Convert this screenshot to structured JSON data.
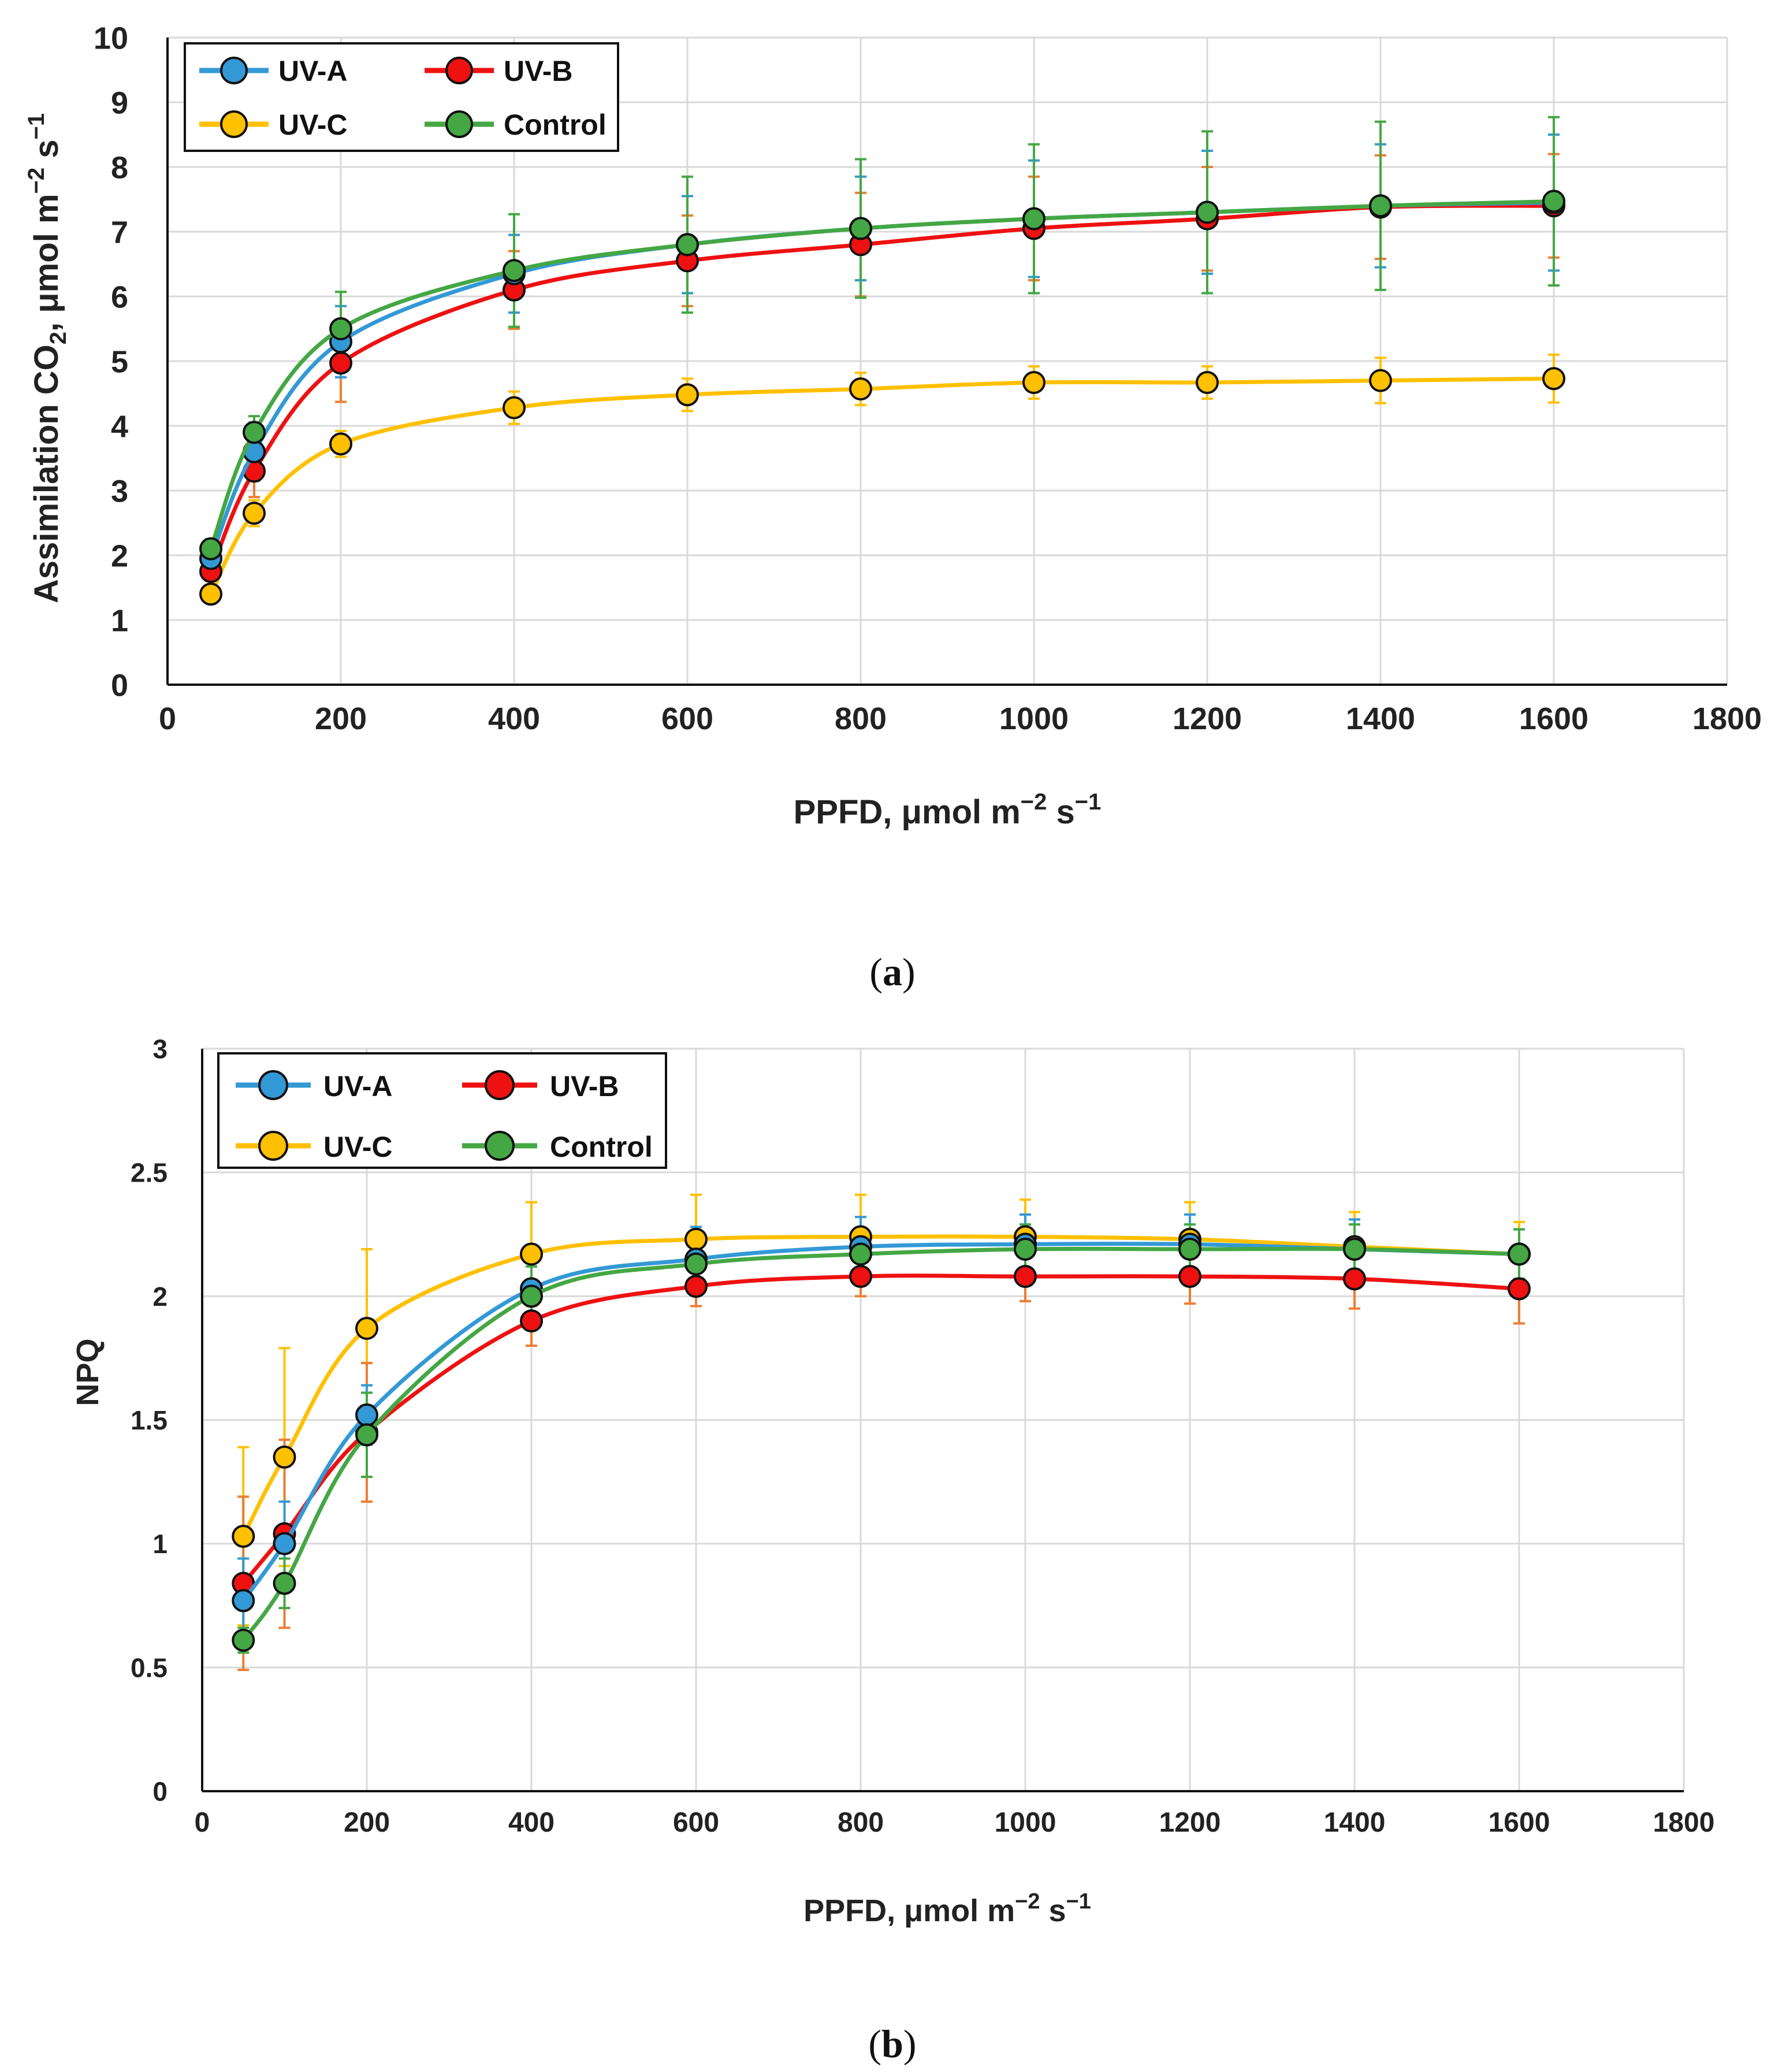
{
  "colors": {
    "UV-A": "#3399D6",
    "UV-B": "#EE1111",
    "UV-C": "#FFC000",
    "Control": "#44A744",
    "err_UV-A": "#3399D6",
    "err_UV-B": "#ED7D31",
    "err_UV-C": "#FFC000",
    "err_Control": "#44A744"
  },
  "chart_data": [
    {
      "type": "line",
      "panel_label": "(a)",
      "caption_letter": "a",
      "ylabel_main": "Assimilation CO",
      "ylabel_sub": "2",
      "ylabel_rest": ", μmol m",
      "ylabel_sup1": "−2",
      "ylabel_s": " s",
      "ylabel_sup2": "−1",
      "xlabel_main": "PPFD,  μmol m",
      "xlabel_sup1": "−2",
      "xlabel_s": " s",
      "xlabel_sup2": "−1",
      "xlim": [
        0,
        1800
      ],
      "ylim": [
        0,
        10
      ],
      "xticks": [
        0,
        200,
        400,
        600,
        800,
        1000,
        1200,
        1400,
        1600,
        1800
      ],
      "yticks": [
        0,
        1,
        2,
        3,
        4,
        5,
        6,
        7,
        8,
        9,
        10
      ],
      "grid": true,
      "legend": {
        "position": "top-left",
        "columns": 2
      },
      "x": [
        50,
        100,
        200,
        400,
        600,
        800,
        1000,
        1200,
        1400,
        1600
      ],
      "series": [
        {
          "name": "UV-A",
          "values": [
            1.95,
            3.6,
            5.3,
            6.35,
            6.8,
            7.05,
            7.2,
            7.3,
            7.4,
            7.45
          ],
          "errors": [
            0.15,
            0.45,
            0.55,
            0.6,
            0.75,
            0.8,
            0.9,
            0.95,
            0.95,
            1.05
          ]
        },
        {
          "name": "UV-B",
          "values": [
            1.75,
            3.3,
            4.97,
            6.1,
            6.55,
            6.8,
            7.05,
            7.2,
            7.38,
            7.4
          ],
          "errors": [
            0.15,
            0.4,
            0.6,
            0.6,
            0.7,
            0.8,
            0.8,
            0.8,
            0.8,
            0.8
          ]
        },
        {
          "name": "UV-C",
          "values": [
            1.4,
            2.65,
            3.72,
            4.28,
            4.48,
            4.57,
            4.67,
            4.67,
            4.7,
            4.73
          ],
          "errors": [
            0.12,
            0.2,
            0.2,
            0.25,
            0.25,
            0.25,
            0.25,
            0.25,
            0.35,
            0.37
          ]
        },
        {
          "name": "Control",
          "values": [
            2.1,
            3.9,
            5.5,
            6.4,
            6.8,
            7.05,
            7.2,
            7.3,
            7.4,
            7.47
          ],
          "errors": [
            0.15,
            0.25,
            0.57,
            0.87,
            1.05,
            1.07,
            1.15,
            1.25,
            1.3,
            1.3
          ]
        }
      ]
    },
    {
      "type": "line",
      "panel_label": "(b)",
      "caption_letter": "b",
      "ylabel_main": "NPQ",
      "xlabel_main": "PPFD,  μmol m",
      "xlabel_sup1": "−2",
      "xlabel_s": " s",
      "xlabel_sup2": "−1",
      "xlim": [
        0,
        1800
      ],
      "ylim": [
        0,
        3
      ],
      "xticks": [
        0,
        200,
        400,
        600,
        800,
        1000,
        1200,
        1400,
        1600,
        1800
      ],
      "yticks": [
        0,
        0.5,
        1,
        1.5,
        2,
        2.5,
        3
      ],
      "grid": true,
      "legend": {
        "position": "top-left",
        "columns": 2
      },
      "x": [
        50,
        100,
        200,
        400,
        600,
        800,
        1000,
        1200,
        1400,
        1600
      ],
      "series": [
        {
          "name": "UV-A",
          "values": [
            0.77,
            1.0,
            1.52,
            2.03,
            2.15,
            2.2,
            2.21,
            2.21,
            2.19,
            2.17
          ],
          "errors": [
            0.17,
            0.17,
            0.12,
            0.12,
            0.13,
            0.12,
            0.12,
            0.12,
            0.12,
            0.1
          ]
        },
        {
          "name": "UV-B",
          "values": [
            0.84,
            1.04,
            1.45,
            1.9,
            2.04,
            2.08,
            2.08,
            2.08,
            2.07,
            2.03
          ],
          "errors": [
            0.35,
            0.38,
            0.28,
            0.1,
            0.08,
            0.08,
            0.1,
            0.11,
            0.12,
            0.14
          ]
        },
        {
          "name": "UV-C",
          "values": [
            1.03,
            1.35,
            1.87,
            2.17,
            2.23,
            2.24,
            2.24,
            2.23,
            2.2,
            2.17
          ],
          "errors": [
            0.36,
            0.44,
            0.32,
            0.21,
            0.18,
            0.17,
            0.15,
            0.15,
            0.14,
            0.13
          ]
        },
        {
          "name": "Control",
          "values": [
            0.61,
            0.84,
            1.44,
            2.0,
            2.13,
            2.17,
            2.19,
            2.19,
            2.19,
            2.17
          ],
          "errors": [
            0.05,
            0.1,
            0.17,
            0.12,
            0.1,
            0.1,
            0.1,
            0.1,
            0.1,
            0.1
          ]
        }
      ]
    }
  ]
}
